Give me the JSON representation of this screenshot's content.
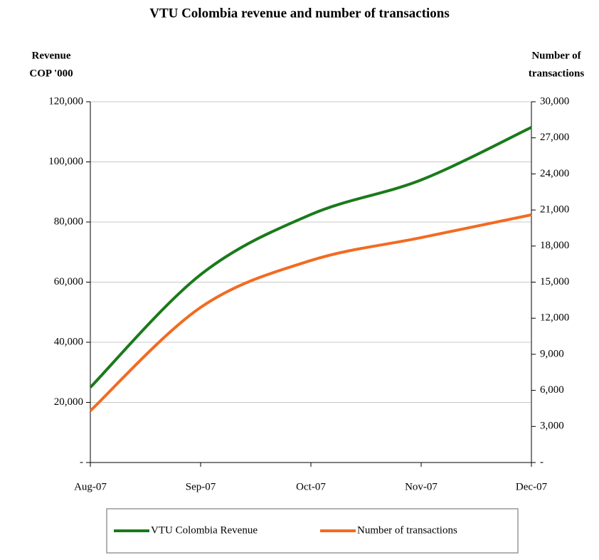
{
  "chart_data": {
    "type": "line",
    "title": "VTU Colombia revenue and number of transactions",
    "y_label_lines": [
      "Revenue",
      "COP '000"
    ],
    "y2_label_lines": [
      "Number of",
      "transactions"
    ],
    "categories": [
      "Aug-07",
      "Sep-07",
      "Oct-07",
      "Nov-07",
      "Dec-07"
    ],
    "series": [
      {
        "name": "VTU Colombia Revenue",
        "color": "#1a7a1a",
        "values": [
          25000,
          62500,
          82500,
          94000,
          111500
        ]
      },
      {
        "name": "Number of transactions",
        "color": "#f26b21",
        "values": [
          4300,
          12900,
          16800,
          18700,
          20600
        ],
        "axis": "y2"
      }
    ],
    "ylim": [
      0,
      120000
    ],
    "yticks": [
      {
        "value": 0,
        "label": "-"
      },
      {
        "value": 20000,
        "label": "20,000"
      },
      {
        "value": 40000,
        "label": "40,000"
      },
      {
        "value": 60000,
        "label": "60,000"
      },
      {
        "value": 80000,
        "label": "80,000"
      },
      {
        "value": 100000,
        "label": "100,000"
      },
      {
        "value": 120000,
        "label": "120,000"
      }
    ],
    "y2lim": [
      0,
      30000
    ],
    "y2ticks": [
      {
        "value": 0,
        "label": "-"
      },
      {
        "value": 3000,
        "label": "3,000"
      },
      {
        "value": 6000,
        "label": "6,000"
      },
      {
        "value": 9000,
        "label": "9,000"
      },
      {
        "value": 12000,
        "label": "12,000"
      },
      {
        "value": 15000,
        "label": "15,000"
      },
      {
        "value": 18000,
        "label": "18,000"
      },
      {
        "value": 21000,
        "label": "21,000"
      },
      {
        "value": 24000,
        "label": "24,000"
      },
      {
        "value": 27000,
        "label": "27,000"
      },
      {
        "value": 30000,
        "label": "30,000"
      }
    ],
    "grid": true,
    "legend": "bottom"
  }
}
